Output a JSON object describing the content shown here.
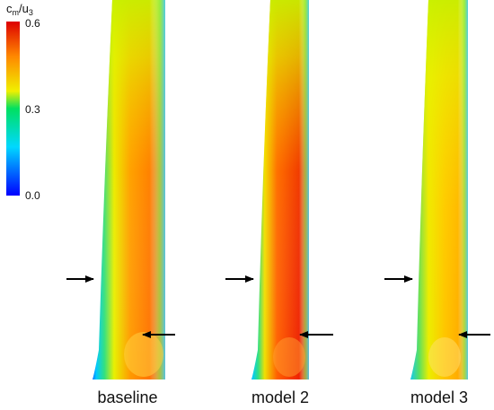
{
  "colorbar": {
    "variable_main": "c",
    "variable_sub1": "m",
    "variable_mid": "/u",
    "variable_sub2": "3",
    "tick_top": "0.6",
    "tick_mid": "0.3",
    "tick_bottom": "0.0",
    "range": [
      0.0,
      0.6
    ],
    "colors": [
      "#0000ff",
      "#00d8ff",
      "#00e060",
      "#f0f000",
      "#ff8800",
      "#dd0000"
    ]
  },
  "panels": [
    {
      "label": "baseline"
    },
    {
      "label": "model 2"
    },
    {
      "label": "model 3"
    }
  ],
  "arrows": "black-arrow-icon"
}
